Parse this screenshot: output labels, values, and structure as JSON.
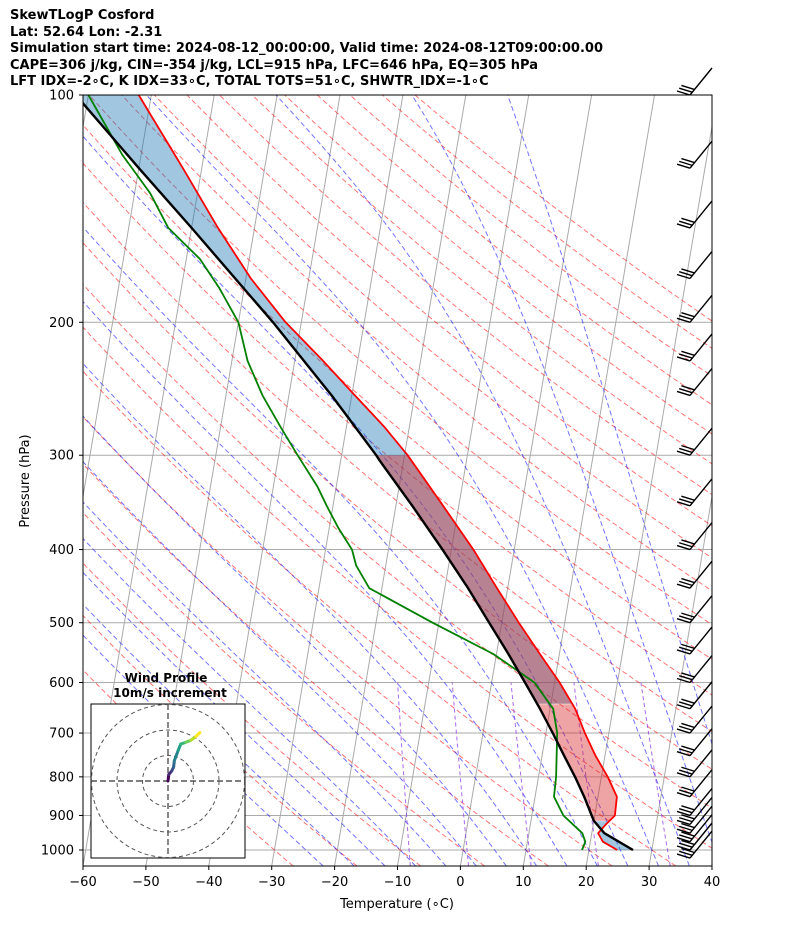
{
  "header": {
    "line1": "SkewTLogP Cosford",
    "line2": "Lat: 52.64   Lon: -2.31",
    "line3": "Simulation start time: 2024-08-12_00:00:00, Valid time: 2024-08-12T09:00:00.00",
    "line4": "CAPE=306 j/kg, CIN=-354 j/kg, LCL=915 hPa, LFC=646 hPa, EQ=305 hPa",
    "line5": "LFT IDX=-2∘C, K IDX=33∘C, TOTAL TOTS=51∘C, SHWTR_IDX=-1∘C"
  },
  "inset": {
    "title1": "Wind Profile",
    "title2": "10m/s increment"
  },
  "colors": {
    "temperature": "#ff0000",
    "dewpoint": "#008000",
    "parcel": "#000000",
    "cape_fill": "#1f77b4",
    "cin_fill": "#d62728",
    "dry_adiabat": "#ff0000",
    "moist_adiabat": "#0000ff",
    "mixing_ratio": "#8a2be2",
    "isotherm": "#999999"
  },
  "chart_data": {
    "type": "line",
    "title": "",
    "xlabel": "Temperature (∘C)",
    "ylabel": "Pressure (hPa)",
    "xlim": [
      -60,
      40
    ],
    "ylim": [
      1050,
      100
    ],
    "y_log_scale": true,
    "skew": true,
    "grid": true,
    "xticks": [
      "−60",
      "−50",
      "−40",
      "−30",
      "−20",
      "−10",
      "0",
      "10",
      "20",
      "30",
      "40"
    ],
    "yticks": [
      "100",
      "200",
      "300",
      "400",
      "500",
      "600",
      "700",
      "800",
      "900",
      "1000"
    ],
    "series": [
      {
        "name": "",
        "role": "temperature",
        "points": [
          [
            1000,
            24.5
          ],
          [
            975,
            22
          ],
          [
            950,
            21
          ],
          [
            925,
            22
          ],
          [
            900,
            23.2
          ],
          [
            850,
            23
          ],
          [
            800,
            21
          ],
          [
            750,
            18.5
          ],
          [
            700,
            16.2
          ],
          [
            650,
            14
          ],
          [
            600,
            10.8
          ],
          [
            550,
            6.9
          ],
          [
            500,
            2.7
          ],
          [
            450,
            -1.7
          ],
          [
            400,
            -6.5
          ],
          [
            350,
            -12.5
          ],
          [
            300,
            -19.5
          ],
          [
            275,
            -24
          ],
          [
            250,
            -29.5
          ],
          [
            225,
            -35.5
          ],
          [
            200,
            -42.5
          ],
          [
            175,
            -49.2
          ],
          [
            150,
            -55.8
          ],
          [
            125,
            -63
          ],
          [
            100,
            -72
          ]
        ]
      },
      {
        "name": "",
        "role": "dewpoint",
        "points": [
          [
            1000,
            18.9
          ],
          [
            975,
            19.2
          ],
          [
            950,
            18.5
          ],
          [
            900,
            15
          ],
          [
            850,
            13
          ],
          [
            800,
            12.8
          ],
          [
            700,
            11.8
          ],
          [
            650,
            10.5
          ],
          [
            600,
            6.8
          ],
          [
            550,
            -0.5
          ],
          [
            500,
            -11
          ],
          [
            450,
            -22
          ],
          [
            420,
            -24.7
          ],
          [
            400,
            -25.8
          ],
          [
            375,
            -28.5
          ],
          [
            350,
            -31
          ],
          [
            330,
            -33
          ],
          [
            300,
            -37
          ],
          [
            275,
            -40.5
          ],
          [
            250,
            -44.2
          ],
          [
            225,
            -47.5
          ],
          [
            200,
            -50
          ],
          [
            180,
            -54
          ],
          [
            165,
            -57.8
          ],
          [
            150,
            -63.7
          ],
          [
            135,
            -67.5
          ],
          [
            120,
            -73
          ],
          [
            100,
            -80
          ]
        ]
      },
      {
        "name": "",
        "role": "parcel",
        "points": [
          [
            1000,
            27
          ],
          [
            950,
            22
          ],
          [
            915,
            20
          ],
          [
            900,
            19.5
          ],
          [
            850,
            17.8
          ],
          [
            800,
            15.8
          ],
          [
            750,
            13.5
          ],
          [
            700,
            11.1
          ],
          [
            650,
            8.4
          ],
          [
            600,
            5.3
          ],
          [
            550,
            1.9
          ],
          [
            500,
            -2
          ],
          [
            450,
            -6.3
          ],
          [
            400,
            -11.4
          ],
          [
            350,
            -17.4
          ],
          [
            305,
            -23.8
          ],
          [
            300,
            -24.5
          ],
          [
            250,
            -33.2
          ],
          [
            200,
            -44.5
          ],
          [
            150,
            -60
          ],
          [
            125,
            -70
          ],
          [
            100,
            -82
          ]
        ]
      }
    ],
    "wind_barbs_hPa": [
      1025,
      1000,
      975,
      950,
      925,
      900,
      850,
      800,
      750,
      700,
      650,
      600,
      550,
      500,
      450,
      400,
      350,
      300,
      250,
      225,
      200,
      175,
      150,
      125,
      100
    ],
    "hodograph": {
      "rings_ms": [
        10,
        20,
        30
      ],
      "points": [
        [
          0,
          0
        ],
        [
          0.3,
          2.5
        ],
        [
          1.5,
          4
        ],
        [
          2.2,
          5.5
        ],
        [
          2.5,
          8
        ],
        [
          4,
          12
        ],
        [
          5,
          14.5
        ],
        [
          7,
          15.2
        ],
        [
          9,
          16
        ],
        [
          11,
          17.5
        ],
        [
          12.5,
          19
        ]
      ]
    }
  }
}
